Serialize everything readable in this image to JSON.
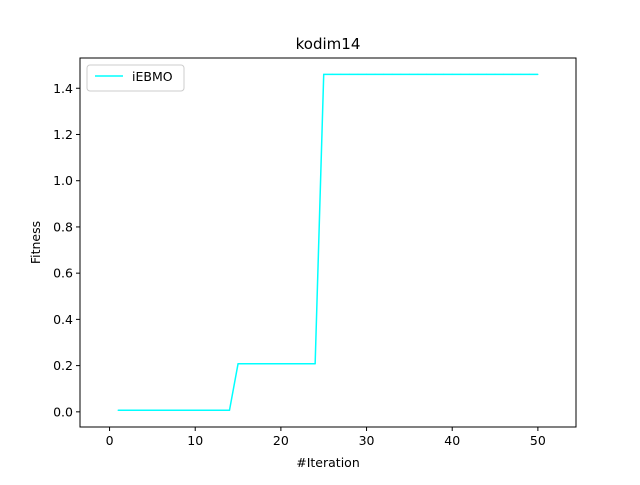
{
  "chart_data": {
    "type": "line",
    "title": "kodim14",
    "xlabel": "#Iteration",
    "ylabel": "Fitness",
    "xlim": [
      -3.45,
      54.45
    ],
    "ylim": [
      -0.0656,
      1.5309
    ],
    "xticks": [
      0,
      10,
      20,
      30,
      40,
      50
    ],
    "yticks": [
      0.0,
      0.2,
      0.4,
      0.6,
      0.8,
      1.0,
      1.2,
      1.4
    ],
    "xtick_labels": [
      "0",
      "10",
      "20",
      "30",
      "40",
      "50"
    ],
    "ytick_labels": [
      "0.0",
      "0.2",
      "0.4",
      "0.6",
      "0.8",
      "1.0",
      "1.2",
      "1.4"
    ],
    "grid": false,
    "legend": "upper left",
    "series": [
      {
        "name": "iEBMO",
        "color": "#00ffff",
        "x": [
          1,
          2,
          3,
          4,
          5,
          6,
          7,
          8,
          9,
          10,
          11,
          12,
          13,
          14,
          15,
          16,
          17,
          18,
          19,
          20,
          21,
          22,
          23,
          24,
          25,
          26,
          27,
          28,
          29,
          30,
          31,
          32,
          33,
          34,
          35,
          36,
          37,
          38,
          39,
          40,
          41,
          42,
          43,
          44,
          45,
          46,
          47,
          48,
          49,
          50
        ],
        "y": [
          0.007,
          0.007,
          0.007,
          0.007,
          0.007,
          0.007,
          0.007,
          0.007,
          0.007,
          0.007,
          0.007,
          0.007,
          0.007,
          0.007,
          0.208,
          0.208,
          0.208,
          0.208,
          0.208,
          0.208,
          0.208,
          0.208,
          0.208,
          0.208,
          1.46,
          1.46,
          1.46,
          1.46,
          1.46,
          1.46,
          1.46,
          1.46,
          1.46,
          1.46,
          1.46,
          1.46,
          1.46,
          1.46,
          1.46,
          1.46,
          1.46,
          1.46,
          1.46,
          1.46,
          1.46,
          1.46,
          1.46,
          1.46,
          1.46,
          1.46
        ]
      }
    ]
  }
}
